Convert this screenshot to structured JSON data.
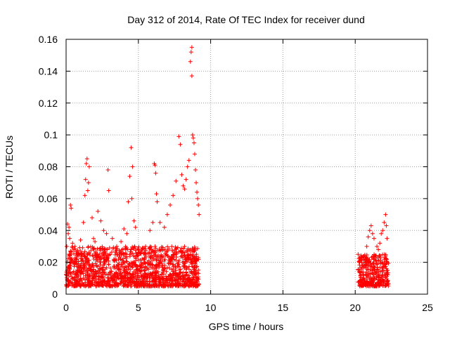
{
  "chart_data": {
    "type": "scatter",
    "title": "Day 312 of 2014, Rate Of TEC Index for receiver dund",
    "xlabel": "GPS time / hours",
    "ylabel": "ROTI / TECUs",
    "xlim": [
      0,
      25
    ],
    "ylim": [
      0,
      0.16
    ],
    "x_ticks": [
      0,
      5,
      10,
      15,
      20,
      25
    ],
    "y_ticks": [
      0,
      0.02,
      0.04,
      0.06,
      0.08,
      0.1,
      0.12,
      0.14,
      0.16
    ],
    "x_tick_labels": [
      "0",
      "5",
      "10",
      "15",
      "20",
      "25"
    ],
    "y_tick_labels": [
      "0",
      "0.02",
      "0.04",
      "0.06",
      "0.08",
      "0.1",
      "0.12",
      "0.14",
      "0.16"
    ],
    "grid": true,
    "legend": "none",
    "marker": "plus",
    "color": "#ff0000",
    "series": [
      {
        "points": [
          [
            0.05,
            0.03
          ],
          [
            0.1,
            0.044
          ],
          [
            0.15,
            0.038
          ],
          [
            0.2,
            0.042
          ],
          [
            0.25,
            0.035
          ],
          [
            0.3,
            0.056
          ],
          [
            0.35,
            0.054
          ],
          [
            0.45,
            0.032
          ],
          [
            0.6,
            0.03
          ],
          [
            0.8,
            0.026
          ],
          [
            1.0,
            0.034
          ],
          [
            1.2,
            0.045
          ],
          [
            1.3,
            0.062
          ],
          [
            1.35,
            0.072
          ],
          [
            1.4,
            0.082
          ],
          [
            1.45,
            0.085
          ],
          [
            1.5,
            0.065
          ],
          [
            1.55,
            0.07
          ],
          [
            1.6,
            0.08
          ],
          [
            1.8,
            0.048
          ],
          [
            1.9,
            0.035
          ],
          [
            2.0,
            0.033
          ],
          [
            2.2,
            0.052
          ],
          [
            2.4,
            0.046
          ],
          [
            2.6,
            0.04
          ],
          [
            2.8,
            0.038
          ],
          [
            2.9,
            0.078
          ],
          [
            2.95,
            0.065
          ],
          [
            3.2,
            0.035
          ],
          [
            3.5,
            0.03
          ],
          [
            3.8,
            0.033
          ],
          [
            4.0,
            0.041
          ],
          [
            4.2,
            0.038
          ],
          [
            4.3,
            0.058
          ],
          [
            4.4,
            0.074
          ],
          [
            4.5,
            0.092
          ],
          [
            4.55,
            0.06
          ],
          [
            4.6,
            0.08
          ],
          [
            4.7,
            0.046
          ],
          [
            4.8,
            0.042
          ],
          [
            5.0,
            0.028
          ],
          [
            5.5,
            0.03
          ],
          [
            5.8,
            0.04
          ],
          [
            6.0,
            0.045
          ],
          [
            6.1,
            0.082
          ],
          [
            6.15,
            0.081
          ],
          [
            6.2,
            0.076
          ],
          [
            6.25,
            0.063
          ],
          [
            6.3,
            0.058
          ],
          [
            6.5,
            0.045
          ],
          [
            6.8,
            0.042
          ],
          [
            7.0,
            0.05
          ],
          [
            7.2,
            0.056
          ],
          [
            7.4,
            0.062
          ],
          [
            7.6,
            0.071
          ],
          [
            7.8,
            0.099
          ],
          [
            7.9,
            0.094
          ],
          [
            8.0,
            0.075
          ],
          [
            8.1,
            0.068
          ],
          [
            8.2,
            0.066
          ],
          [
            8.3,
            0.072
          ],
          [
            8.4,
            0.08
          ],
          [
            8.5,
            0.084
          ],
          [
            8.6,
            0.146
          ],
          [
            8.65,
            0.152
          ],
          [
            8.7,
            0.155
          ],
          [
            8.7,
            0.137
          ],
          [
            8.75,
            0.1
          ],
          [
            8.8,
            0.098
          ],
          [
            8.85,
            0.095
          ],
          [
            8.9,
            0.088
          ],
          [
            8.95,
            0.078
          ],
          [
            9.0,
            0.07
          ],
          [
            9.05,
            0.064
          ],
          [
            9.1,
            0.06
          ],
          [
            9.15,
            0.056
          ],
          [
            9.2,
            0.05
          ]
        ]
      },
      {
        "points": [
          [
            20.2,
            0.025
          ],
          [
            20.3,
            0.021
          ],
          [
            20.5,
            0.018
          ],
          [
            20.7,
            0.022
          ],
          [
            20.8,
            0.03
          ],
          [
            20.9,
            0.036
          ],
          [
            21.0,
            0.04
          ],
          [
            21.1,
            0.043
          ],
          [
            21.2,
            0.038
          ],
          [
            21.3,
            0.035
          ],
          [
            21.5,
            0.03
          ],
          [
            21.6,
            0.028
          ],
          [
            21.7,
            0.032
          ],
          [
            21.8,
            0.038
          ],
          [
            21.9,
            0.04
          ],
          [
            22.0,
            0.045
          ],
          [
            22.1,
            0.05
          ],
          [
            22.15,
            0.043
          ],
          [
            22.2,
            0.035
          ]
        ]
      }
    ],
    "dense_bands": [
      {
        "x_range": [
          0.0,
          9.2
        ],
        "y_min": 0.005,
        "y_max": 0.03
      },
      {
        "x_range": [
          20.2,
          22.3
        ],
        "y_min": 0.005,
        "y_max": 0.025
      }
    ]
  }
}
